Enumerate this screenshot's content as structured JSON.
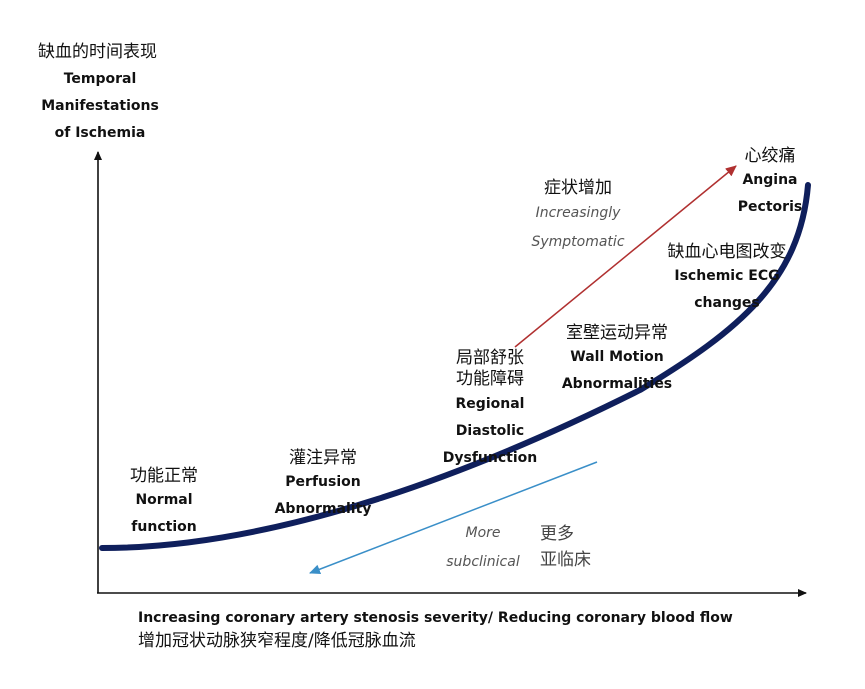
{
  "y_axis": {
    "cn": "缺血的时间表现",
    "en": [
      "Temporal",
      "Manifestations",
      "of Ischemia"
    ]
  },
  "x_axis": {
    "en": "Increasing coronary artery stenosis severity/ Reducing coronary blood flow",
    "cn": "增加冠状动脉狭窄程度/降低冠脉血流"
  },
  "stages": [
    {
      "cn": [
        "功能正常"
      ],
      "en": [
        "Normal",
        "function"
      ]
    },
    {
      "cn": [
        "灌注异常"
      ],
      "en": [
        "Perfusion",
        "Abnormality"
      ]
    },
    {
      "cn": [
        "局部舒张",
        "功能障碍"
      ],
      "en": [
        "Regional",
        "Diastolic",
        "Dysfunction"
      ]
    },
    {
      "cn": [
        "室壁运动异常"
      ],
      "en": [
        "Wall Motion",
        "Abnormalities"
      ]
    },
    {
      "cn": [
        "缺血心电图改变"
      ],
      "en": [
        "Ischemic ECG",
        "changes"
      ]
    },
    {
      "cn": [
        "心绞痛"
      ],
      "en": [
        "Angina",
        "Pectoris"
      ]
    }
  ],
  "symptomatic_arrow": {
    "cn": "症状增加",
    "en": [
      "Increasingly",
      "Symptomatic"
    ]
  },
  "subclinical_arrow": {
    "en": [
      "More",
      "subclinical"
    ],
    "cn": [
      "更多",
      "亚临床"
    ]
  },
  "colors": {
    "curve": "#0f1f5c",
    "symptomatic_arrow": "#b03030",
    "subclinical_arrow": "#3a8fc8",
    "axes": "#111111"
  }
}
